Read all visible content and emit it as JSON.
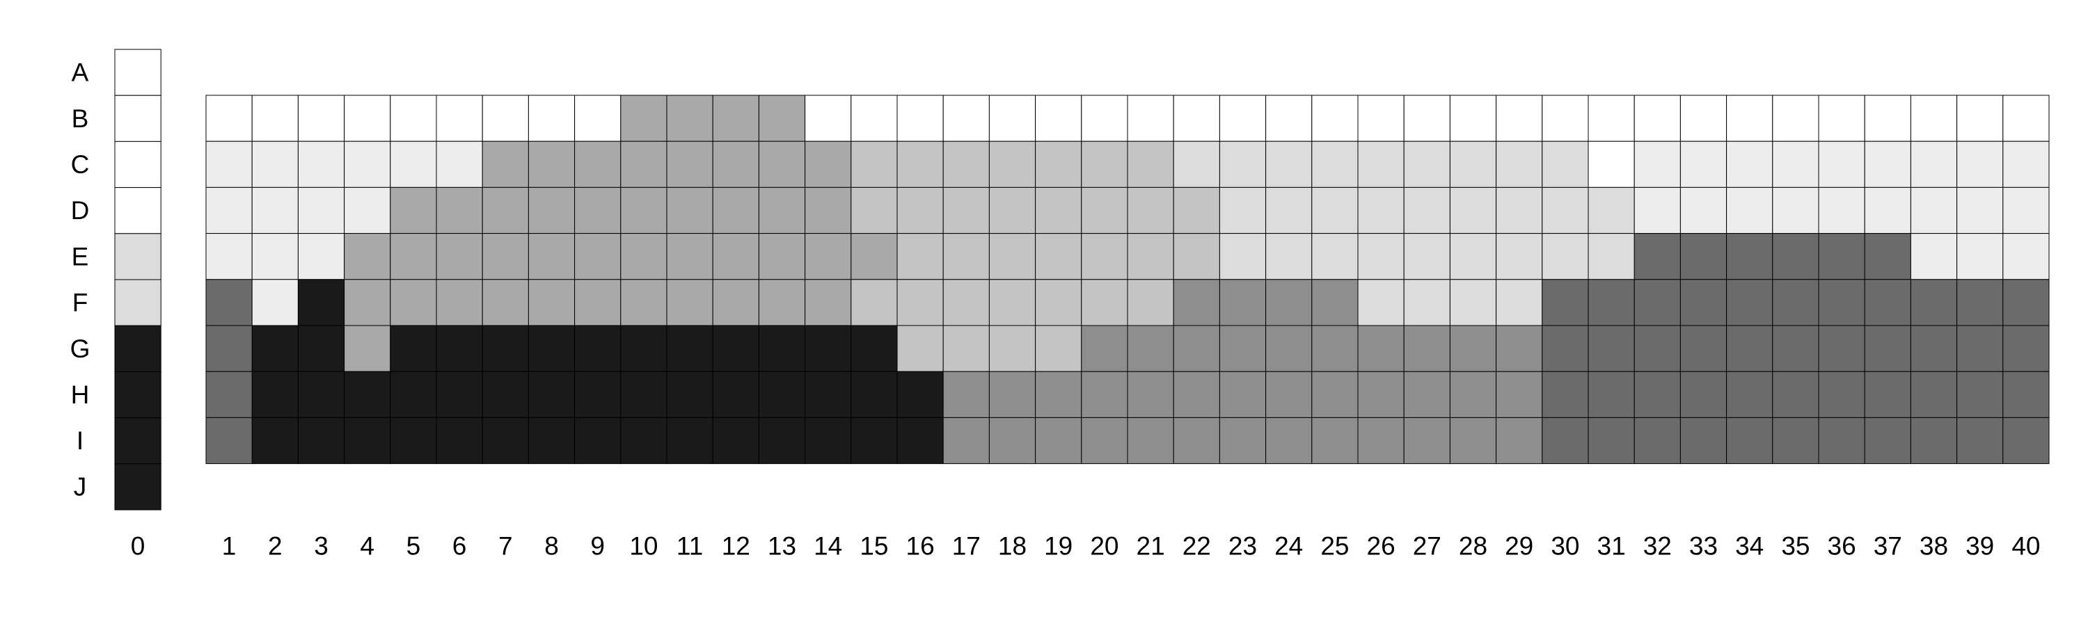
{
  "chart_data": {
    "type": "heatmap",
    "title": "",
    "xlabel": "",
    "ylabel": "",
    "grid": true,
    "legend": "none",
    "row_labels": [
      "A",
      "B",
      "C",
      "D",
      "E",
      "F",
      "G",
      "H",
      "I",
      "J"
    ],
    "reference_column": {
      "label": "0",
      "values": [
        0,
        0,
        0,
        0,
        1,
        1,
        5,
        5,
        5,
        5
      ]
    },
    "columns": [
      "1",
      "2",
      "3",
      "4",
      "5",
      "6",
      "7",
      "8",
      "9",
      "10",
      "11",
      "12",
      "13",
      "14",
      "15",
      "16",
      "17",
      "18",
      "19",
      "20",
      "21",
      "22",
      "23",
      "24",
      "25",
      "26",
      "27",
      "28",
      "29",
      "30",
      "31",
      "32",
      "33",
      "34",
      "35",
      "36",
      "37",
      "38",
      "39",
      "40"
    ],
    "grid_rows": [
      "B",
      "C",
      "D",
      "E",
      "F",
      "G",
      "H",
      "I"
    ],
    "values": [
      [
        0,
        0,
        0,
        0,
        0,
        0,
        0,
        0,
        0,
        3,
        3,
        3,
        3,
        0,
        0,
        0,
        0,
        0,
        0,
        0,
        0,
        0,
        0,
        0,
        0,
        0,
        0,
        0,
        0,
        0,
        0,
        0,
        0,
        0,
        0,
        0,
        0,
        0,
        0,
        0
      ],
      [
        1,
        1,
        1,
        1,
        1,
        1,
        3,
        3,
        3,
        3,
        3,
        3,
        3,
        3,
        2,
        2,
        2,
        2,
        2,
        2,
        2,
        1,
        1,
        1,
        1,
        1,
        1,
        1,
        1,
        1,
        0,
        1,
        1,
        1,
        1,
        1,
        1,
        1,
        1,
        1
      ],
      [
        1,
        1,
        1,
        1,
        3,
        3,
        3,
        3,
        3,
        3,
        3,
        3,
        3,
        3,
        2,
        2,
        2,
        2,
        2,
        2,
        2,
        2,
        1,
        1,
        1,
        1,
        1,
        1,
        1,
        1,
        1,
        1,
        1,
        1,
        1,
        1,
        1,
        1,
        1,
        1
      ],
      [
        1,
        1,
        1,
        3,
        3,
        3,
        3,
        3,
        3,
        3,
        3,
        3,
        3,
        3,
        3,
        2,
        2,
        2,
        2,
        2,
        2,
        2,
        1,
        1,
        1,
        1,
        1,
        1,
        1,
        1,
        1,
        4,
        4,
        4,
        4,
        4,
        4,
        1,
        1,
        1
      ],
      [
        4,
        1,
        5,
        3,
        3,
        3,
        3,
        3,
        3,
        3,
        3,
        3,
        3,
        3,
        2,
        2,
        2,
        2,
        2,
        2,
        2,
        3,
        3,
        3,
        3,
        1,
        1,
        1,
        1,
        4,
        4,
        4,
        4,
        4,
        4,
        4,
        4,
        4,
        4,
        4
      ],
      [
        4,
        5,
        5,
        3,
        5,
        5,
        5,
        5,
        5,
        5,
        5,
        5,
        5,
        5,
        5,
        2,
        2,
        2,
        2,
        3,
        3,
        3,
        3,
        3,
        3,
        3,
        3,
        3,
        3,
        4,
        4,
        4,
        4,
        4,
        4,
        4,
        4,
        4,
        4,
        4
      ],
      [
        4,
        5,
        5,
        5,
        5,
        5,
        5,
        5,
        5,
        5,
        5,
        5,
        5,
        5,
        5,
        5,
        3,
        3,
        3,
        3,
        3,
        3,
        3,
        3,
        3,
        3,
        3,
        3,
        3,
        4,
        4,
        4,
        4,
        4,
        4,
        4,
        4,
        4,
        4,
        4
      ],
      [
        4,
        5,
        5,
        5,
        5,
        5,
        5,
        5,
        5,
        5,
        5,
        5,
        5,
        5,
        5,
        5,
        3,
        3,
        3,
        3,
        3,
        3,
        3,
        3,
        3,
        3,
        3,
        3,
        3,
        4,
        4,
        4,
        4,
        4,
        4,
        4,
        4,
        4,
        4,
        4
      ]
    ],
    "colors": [
      "#ffffff",
      "#efefef",
      "#c4c4c4",
      "#8e8e8e",
      "#6b6b6b",
      "#1a1a1a"
    ],
    "shades_note": [],
    "cell_colors_by_value": {
      "0": "#ffffff",
      "1": "#ededed",
      "2": "#c4c4c4",
      "3": "#a9a9a9",
      "4": "#6b6b6b",
      "5": "#1a1a1a"
    },
    "cell_colors_override": {
      "reference_light": "#dcdcdc",
      "light_mid": "#dcdcdc",
      "mid_dark": "#8e8e8e"
    }
  }
}
